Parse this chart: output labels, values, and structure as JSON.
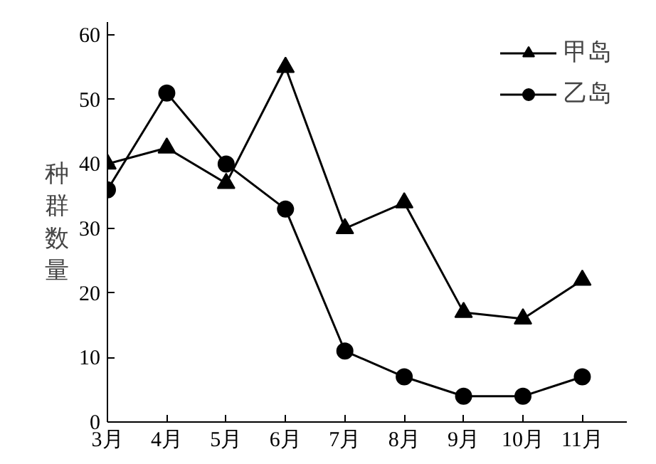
{
  "chart_data": {
    "type": "line",
    "ylabel": "种群数量",
    "categories": [
      "3月",
      "4月",
      "5月",
      "6月",
      "7月",
      "8月",
      "9月",
      "10月",
      "11月"
    ],
    "series": [
      {
        "name": "甲岛",
        "color": "#000000",
        "marker": "triangle",
        "values": [
          40,
          42.5,
          37,
          55,
          30,
          34,
          17,
          16,
          22
        ]
      },
      {
        "name": "乙岛",
        "color": "#000000",
        "marker": "circle",
        "values": [
          36,
          51,
          40,
          33,
          11,
          7,
          4,
          4,
          7
        ]
      }
    ],
    "ylim": [
      0,
      62
    ],
    "yticks": [
      0,
      10,
      20,
      30,
      40,
      50,
      60
    ],
    "grid": false,
    "legend": "top right",
    "line_style": "solid"
  }
}
